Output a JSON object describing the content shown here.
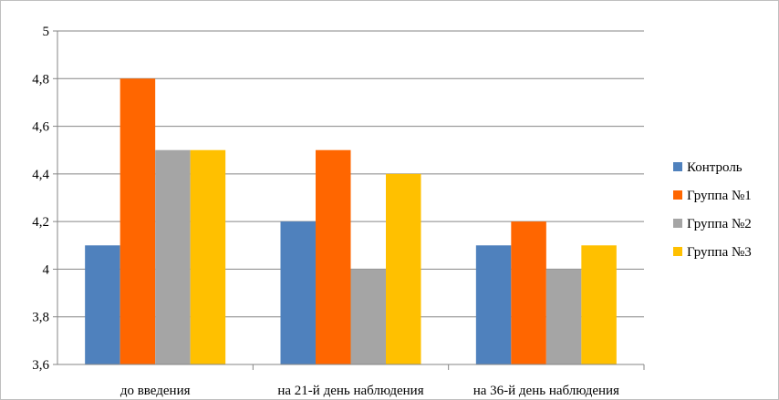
{
  "chart_data": {
    "type": "bar",
    "title": "",
    "xlabel": "",
    "ylabel": "",
    "categories": [
      "до введения",
      "на 21-й день наблюдения",
      "на 36-й день наблюдения"
    ],
    "series": [
      {
        "name": "Контроль",
        "color": "#4f81bd",
        "values": [
          4.1,
          4.2,
          4.1
        ]
      },
      {
        "name": "Группа №1",
        "color": "#ff6600",
        "values": [
          4.8,
          4.5,
          4.2
        ]
      },
      {
        "name": "Группа №2",
        "color": "#a5a5a5",
        "values": [
          4.5,
          4.0,
          4.0
        ]
      },
      {
        "name": "Группа №3",
        "color": "#ffc000",
        "values": [
          4.5,
          4.4,
          4.1
        ]
      }
    ],
    "ylim": [
      3.6,
      5.0
    ],
    "yticks": [
      "3,6",
      "3,8",
      "4",
      "4,2",
      "4,4",
      "4,6",
      "4,8",
      "5"
    ],
    "ytick_values": [
      3.6,
      3.8,
      4.0,
      4.2,
      4.4,
      4.6,
      4.8,
      5.0
    ],
    "grid": true,
    "legend_position": "right"
  }
}
